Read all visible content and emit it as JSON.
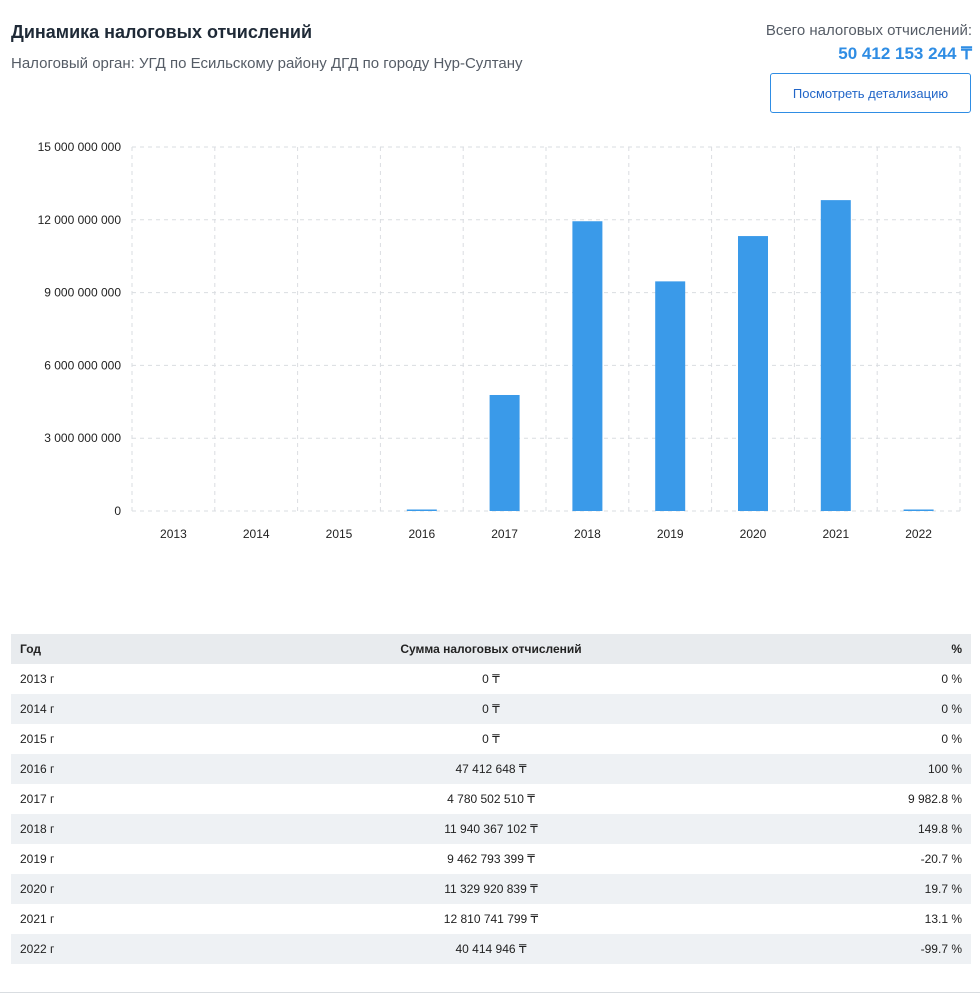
{
  "header": {
    "title": "Динамика налоговых отчислений",
    "subtitle": "Налоговый орган:  УГД по Есильскому району ДГД по городу Нур-Султану",
    "total_label": "Всего налоговых отчислений:",
    "total_value": "50 412 153 244 ₸",
    "detail_button": "Посмотреть детализацию"
  },
  "colors": {
    "accent": "#2f8de4",
    "bar": "#3a9ae9",
    "positive": "#22b14c",
    "negative": "#e62020"
  },
  "chart_data": {
    "type": "bar",
    "categories": [
      "2013",
      "2014",
      "2015",
      "2016",
      "2017",
      "2018",
      "2019",
      "2020",
      "2021",
      "2022"
    ],
    "values": [
      0,
      0,
      0,
      47412648,
      4780502510,
      11940367102,
      9462793399,
      11329920839,
      12810741799,
      40414946
    ],
    "ylim": [
      0,
      15000000000
    ],
    "yticks": [
      0,
      3000000000,
      6000000000,
      9000000000,
      12000000000,
      15000000000
    ],
    "ytick_labels": [
      "0",
      "3 000 000 000",
      "6 000 000 000",
      "9 000 000 000",
      "12 000 000 000",
      "15 000 000 000"
    ],
    "grid": true,
    "legend": "none"
  },
  "table": {
    "headers": [
      "Год",
      "Сумма налоговых отчислений",
      "%"
    ],
    "rows": [
      {
        "year": "2013 г",
        "sum": "0 ₸",
        "pct": "0 %",
        "trend": "neutral"
      },
      {
        "year": "2014 г",
        "sum": "0 ₸",
        "pct": "0 %",
        "trend": "neutral"
      },
      {
        "year": "2015 г",
        "sum": "0 ₸",
        "pct": "0 %",
        "trend": "neutral"
      },
      {
        "year": "2016 г",
        "sum": "47 412 648 ₸",
        "pct": "100 %",
        "trend": "up"
      },
      {
        "year": "2017 г",
        "sum": "4 780 502 510 ₸",
        "pct": "9 982.8 %",
        "trend": "up"
      },
      {
        "year": "2018 г",
        "sum": "11 940 367 102 ₸",
        "pct": "149.8 %",
        "trend": "up"
      },
      {
        "year": "2019 г",
        "sum": "9 462 793 399 ₸",
        "pct": "-20.7 %",
        "trend": "down"
      },
      {
        "year": "2020 г",
        "sum": "11 329 920 839 ₸",
        "pct": "19.7 %",
        "trend": "up"
      },
      {
        "year": "2021 г",
        "sum": "12 810 741 799 ₸",
        "pct": "13.1 %",
        "trend": "up"
      },
      {
        "year": "2022 г",
        "sum": "40 414 946 ₸",
        "pct": "-99.7 %",
        "trend": "down"
      }
    ]
  }
}
